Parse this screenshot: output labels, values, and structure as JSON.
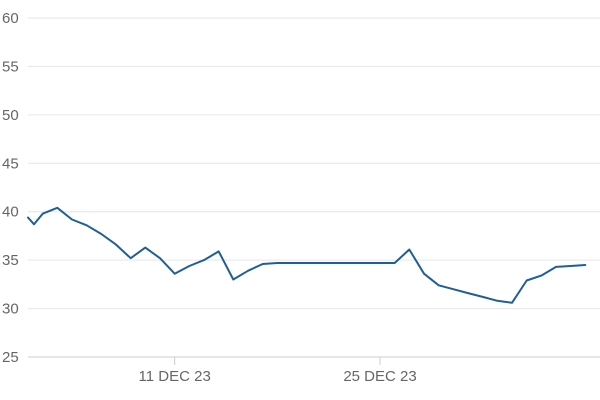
{
  "chart_data": {
    "type": "line",
    "title": "",
    "xlabel": "",
    "ylabel": "",
    "x_range": [
      "2023-12-01",
      "2024-01-09"
    ],
    "ylim": [
      25,
      60
    ],
    "y_ticks": [
      25,
      30,
      35,
      40,
      45,
      50,
      55,
      60
    ],
    "x_ticks": [
      {
        "date": "2023-12-11",
        "label": "11 DEC 23"
      },
      {
        "date": "2023-12-25",
        "label": "25 DEC 23"
      }
    ],
    "grid": true,
    "legend": "none",
    "colors": {
      "line": "#1f5f99",
      "grid": "#e6e6e6",
      "axis": "#cccccc",
      "text": "#666666"
    },
    "series": [
      {
        "x": [
          "2023-12-01",
          "2023-12-01",
          "2023-12-02",
          "2023-12-03",
          "2023-12-04",
          "2023-12-05",
          "2023-12-06",
          "2023-12-07",
          "2023-12-08",
          "2023-12-09",
          "2023-12-10",
          "2023-12-11",
          "2023-12-12",
          "2023-12-13",
          "2023-12-14",
          "2023-12-15",
          "2023-12-16",
          "2023-12-17",
          "2023-12-18",
          "2023-12-19",
          "2023-12-20",
          "2023-12-21",
          "2023-12-22",
          "2023-12-23",
          "2023-12-24",
          "2023-12-25",
          "2023-12-26",
          "2023-12-27",
          "2023-12-28",
          "2023-12-29",
          "2023-12-30",
          "2023-12-31",
          "2024-01-01",
          "2024-01-02",
          "2024-01-03",
          "2024-01-04",
          "2024-01-05",
          "2024-01-06",
          "2024-01-07",
          "2024-01-08"
        ],
        "values": [
          39.4,
          38.7,
          39.8,
          40.4,
          39.2,
          38.6,
          37.7,
          36.6,
          35.2,
          36.3,
          35.2,
          33.6,
          34.4,
          35.0,
          35.9,
          33.0,
          33.9,
          34.6,
          34.7,
          34.7,
          34.7,
          34.7,
          34.7,
          34.7,
          34.7,
          34.7,
          34.7,
          36.1,
          33.6,
          32.4,
          32.0,
          31.6,
          31.2,
          30.8,
          30.6,
          32.9,
          33.4,
          34.3,
          34.4,
          34.5
        ]
      }
    ]
  }
}
